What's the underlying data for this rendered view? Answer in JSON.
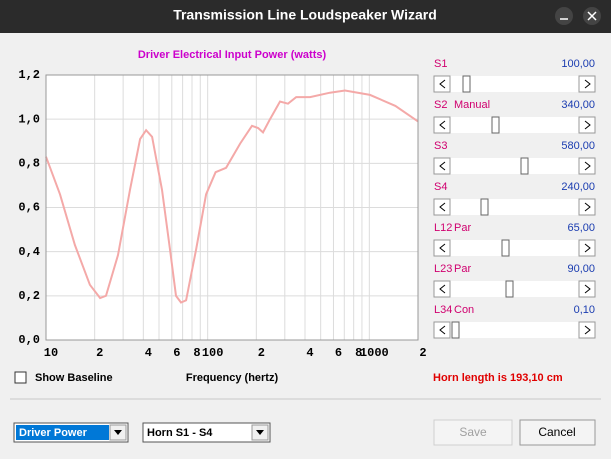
{
  "window": {
    "title": "Transmission Line Loudspeaker Wizard"
  },
  "chart_data": {
    "type": "line",
    "title": "Driver Electrical Input Power (watts)",
    "x_label": "Frequency (hertz)",
    "x": [
      10,
      12.2,
      15.1,
      18.7,
      21.6,
      23.5,
      27.9,
      33.1,
      38.2,
      41.6,
      45.3,
      52.2,
      58.5,
      63.7,
      68.4,
      73.6,
      84.8,
      97.8,
      112,
      130,
      159,
      188,
      205,
      220,
      243,
      280,
      314,
      353,
      430,
      570,
      707,
      1010,
      1450,
      2000
    ],
    "series": [
      {
        "color": "#f4a9a8",
        "values": [
          0.83,
          0.66,
          0.43,
          0.25,
          0.19,
          0.2,
          0.385,
          0.68,
          0.91,
          0.95,
          0.92,
          0.68,
          0.41,
          0.2,
          0.17,
          0.18,
          0.41,
          0.66,
          0.76,
          0.78,
          0.89,
          0.97,
          0.96,
          0.94,
          1.0,
          1.08,
          1.07,
          1.1,
          1.1,
          1.12,
          1.13,
          1.11,
          1.06,
          0.99
        ]
      }
    ],
    "xlim": [
      10,
      2000
    ],
    "ylim": [
      0,
      1.2
    ],
    "log_x": true,
    "grid": true,
    "xticks": [
      10,
      {
        "value": 20,
        "label": "2"
      },
      {
        "value": 30,
        "label": null
      },
      {
        "value": 40,
        "label": "4"
      },
      {
        "value": 50,
        "label": null
      },
      {
        "value": 60,
        "label": "6"
      },
      {
        "value": 70,
        "label": null
      },
      {
        "value": 80,
        "label": "8"
      },
      {
        "value": 90,
        "label": null
      },
      100,
      {
        "value": 200,
        "label": "2"
      },
      {
        "value": 300,
        "label": null
      },
      {
        "value": 400,
        "label": "4"
      },
      {
        "value": 500,
        "label": null
      },
      {
        "value": 600,
        "label": "6"
      },
      {
        "value": 700,
        "label": null
      },
      {
        "value": 800,
        "label": "8"
      },
      {
        "value": 900,
        "label": null
      },
      1000,
      {
        "value": 2000,
        "label": "2"
      }
    ],
    "yticks": [
      {
        "value": 0,
        "label": "0,0"
      },
      {
        "value": 0.2,
        "label": "0,2"
      },
      {
        "value": 0.4,
        "label": "0,4"
      },
      {
        "value": 0.6,
        "label": "0,6"
      },
      {
        "value": 0.8,
        "label": "0,8"
      },
      {
        "value": 1.0,
        "label": "1,0"
      },
      {
        "value": 1.2,
        "label": "1,2"
      }
    ]
  },
  "sliders": [
    {
      "label": "S1",
      "value": "100,00"
    },
    {
      "label": "S2",
      "mode": "Manual",
      "value": "340,00"
    },
    {
      "label": "S3",
      "value": "580,00"
    },
    {
      "label": "S4",
      "value": "240,00"
    },
    {
      "label": "L12",
      "mode": "Par",
      "value": "65,00"
    },
    {
      "label": "L23",
      "mode": "Par",
      "value": "90,00"
    },
    {
      "label": "L34",
      "mode": "Con",
      "value": "0,10"
    }
  ],
  "checkbox": {
    "label": "Show Baseline"
  },
  "status": "Horn length is 193,10 cm",
  "dropdowns": [
    "Driver Power",
    "Horn S1 - S4"
  ],
  "buttons": [
    "Save",
    "Cancel"
  ]
}
